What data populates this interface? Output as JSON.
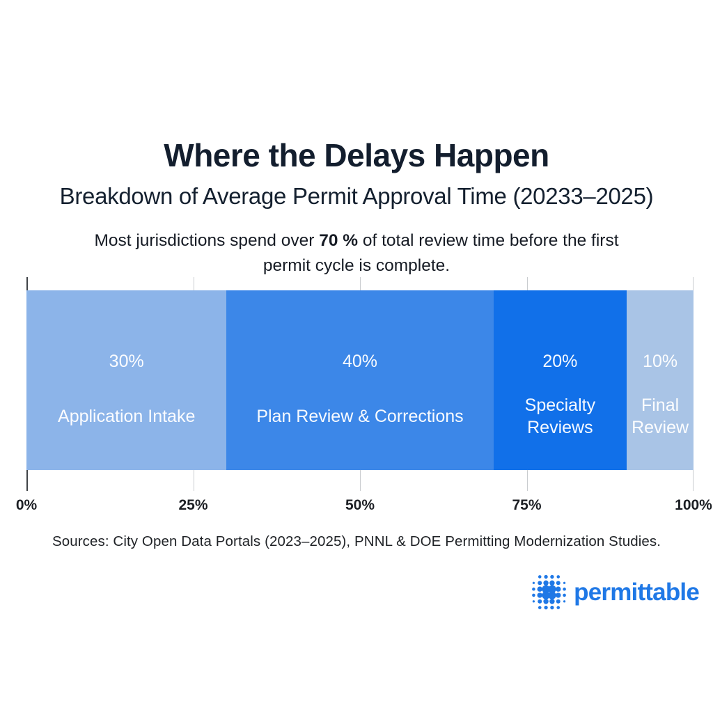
{
  "header": {
    "title": "Where the Delays Happen",
    "subtitle": "Breakdown of Average Permit Approval Time (20233–2025)",
    "description": {
      "pre": "Most jurisdictions spend over ",
      "highlight": "70 %",
      "post": " of total review time before the first",
      "line2": "permit cycle is complete."
    }
  },
  "chart_data": {
    "type": "bar",
    "variant": "horizontal-stacked-single-bar",
    "title": "Where the Delays Happen",
    "subtitle": "Breakdown of Average Permit Approval Time (20233–2025)",
    "unit": "%",
    "categories": [
      "Application Intake",
      "Plan Review & Corrections",
      "Specialty Reviews",
      "Final Review"
    ],
    "values": [
      30,
      40,
      20,
      10
    ],
    "segments": [
      {
        "label": "Application Intake",
        "label_display": "Application Intake",
        "value": 30,
        "value_label": "30%",
        "color": "#8cb4e9"
      },
      {
        "label": "Plan Review & Corrections",
        "label_display": "Plan Review & Corrections",
        "value": 40,
        "value_label": "40%",
        "color": "#3c87e8"
      },
      {
        "label": "Specialty Reviews",
        "label_display": "Specialty\nReviews",
        "value": 20,
        "value_label": "20%",
        "color": "#1170e9"
      },
      {
        "label": "Final Review",
        "label_display": "Final\nReview",
        "value": 10,
        "value_label": "10%",
        "color": "#a9c4e6"
      }
    ],
    "x_axis": {
      "range": [
        0,
        100
      ],
      "ticks": [
        "0%",
        "25%",
        "50%",
        "75%",
        "100%"
      ]
    },
    "grid": "vertical tick lines at 0/25/50/75/100, first tick dark, others light gray",
    "legend": "none",
    "text_color_on_bar": "#ffffff"
  },
  "footer": {
    "sources": "Sources: City Open Data Portals (2023–2025), PNNL & DOE Permitting Modernization Studies.",
    "brand": {
      "name": "permittable",
      "color": "#1f78e6",
      "icon": "dot-matrix-sphere"
    }
  }
}
